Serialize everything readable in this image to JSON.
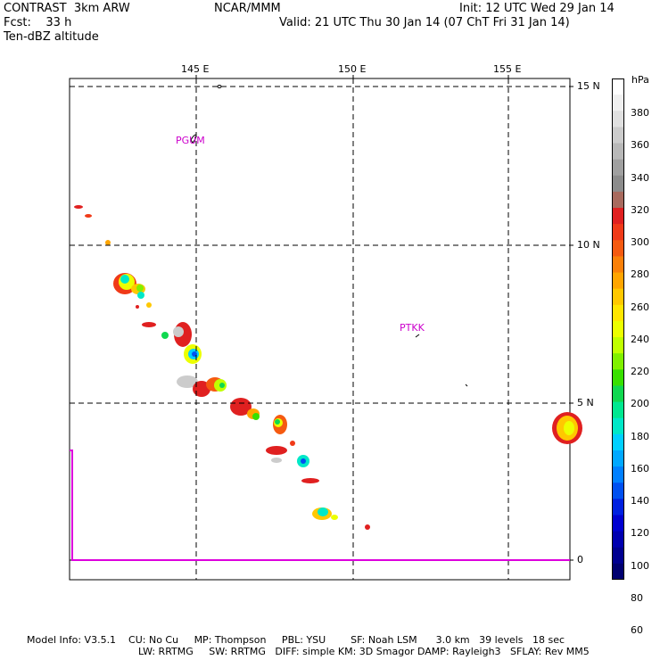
{
  "header": {
    "left_line1": "CONTRAST  3km ARW",
    "left_line2": "Fcst:    33 h",
    "left_line3": "Ten-dBZ altitude",
    "center": "NCAR/MMM",
    "right_line1": "Init: 12 UTC Wed 29 Jan 14",
    "right_line2": "Valid: 21 UTC Thu 30 Jan 14 (07 ChT Fri 31 Jan 14)"
  },
  "axes": {
    "lon_labels": [
      "145 E",
      "150 E",
      "155 E"
    ],
    "lat_labels": [
      "15 N",
      "10 N",
      "5 N",
      "0"
    ]
  },
  "stations": [
    {
      "id": "PGUM",
      "lon": 144.8,
      "lat": 13.5
    },
    {
      "id": "PTKK",
      "lon": 151.8,
      "lat": 7.5
    }
  ],
  "colorbar": {
    "unit": "hPa",
    "tick_labels": [
      "380",
      "360",
      "340",
      "320",
      "300",
      "280",
      "260",
      "240",
      "220",
      "200",
      "180",
      "160",
      "140",
      "120",
      "100",
      "80",
      "60"
    ],
    "colors": [
      "#ffffff",
      "#f0f0f0",
      "#e0e0e0",
      "#cccccc",
      "#b8b8b8",
      "#a0a0a0",
      "#8c8c8c",
      "#a86a5e",
      "#e02020",
      "#f03a18",
      "#f55a10",
      "#fa8008",
      "#ffa500",
      "#ffc800",
      "#ffe600",
      "#ecff00",
      "#c0ff00",
      "#80f000",
      "#38e000",
      "#10d850",
      "#00e890",
      "#00e8c8",
      "#00d0ff",
      "#00a8ff",
      "#0080ff",
      "#0050f0",
      "#0020e0",
      "#0000d0",
      "#0000b0",
      "#000090",
      "#000070"
    ]
  },
  "footer": {
    "line1": "Model Info: V3.5.1    CU: No Cu     MP: Thompson     PBL: YSU        SF: Noah LSM      3.0 km   39 levels   18 sec",
    "line2": "LW: RRTMG     SW: RRTMG   DIFF: simple KM: 3D Smagor DAMP: Rayleigh3   SFLAY: Rev MM5"
  },
  "legend_colors": {
    "grid": "#000000",
    "station_label": "#cc00cc",
    "boundary": "#dd00dd"
  }
}
